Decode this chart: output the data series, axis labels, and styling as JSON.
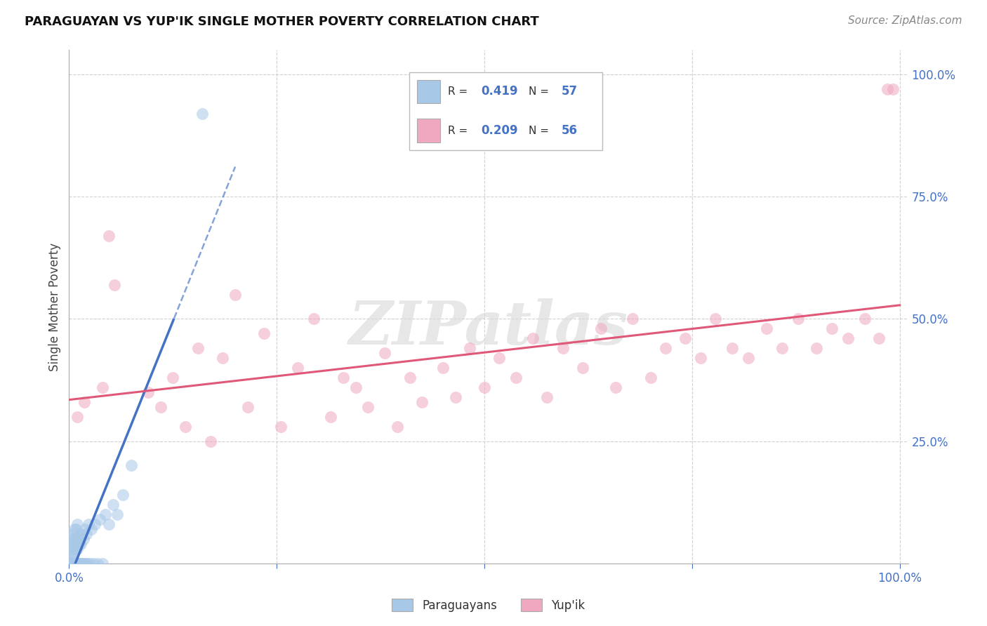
{
  "title": "PARAGUAYAN VS YUP'IK SINGLE MOTHER POVERTY CORRELATION CHART",
  "source": "Source: ZipAtlas.com",
  "ylabel": "Single Mother Poverty",
  "legend_labels": [
    "Paraguayans",
    "Yup'ik"
  ],
  "r_paraguayan": 0.419,
  "n_paraguayan": 57,
  "r_yupik": 0.209,
  "n_yupik": 56,
  "blue_scatter_color": "#a8c8e8",
  "pink_scatter_color": "#f0a8c0",
  "blue_line_color": "#4472c4",
  "pink_line_color": "#e05878",
  "watermark_color": "#d8d8d8",
  "paraguayan_x": [
    0.001,
    0.002,
    0.002,
    0.003,
    0.003,
    0.003,
    0.004,
    0.004,
    0.004,
    0.005,
    0.005,
    0.005,
    0.006,
    0.006,
    0.006,
    0.007,
    0.007,
    0.008,
    0.008,
    0.008,
    0.009,
    0.009,
    0.01,
    0.01,
    0.01,
    0.011,
    0.011,
    0.012,
    0.012,
    0.013,
    0.013,
    0.014,
    0.014,
    0.015,
    0.015,
    0.016,
    0.017,
    0.018,
    0.019,
    0.02,
    0.021,
    0.022,
    0.023,
    0.025,
    0.027,
    0.029,
    0.031,
    0.034,
    0.037,
    0.04,
    0.044,
    0.048,
    0.053,
    0.058,
    0.065,
    0.075,
    0.16
  ],
  "paraguayan_y": [
    0.0,
    0.01,
    0.04,
    0.0,
    0.02,
    0.05,
    0.0,
    0.03,
    0.06,
    0.0,
    0.02,
    0.05,
    0.0,
    0.03,
    0.07,
    0.0,
    0.04,
    0.0,
    0.03,
    0.07,
    0.0,
    0.05,
    0.0,
    0.03,
    0.08,
    0.0,
    0.05,
    0.0,
    0.04,
    0.0,
    0.06,
    0.0,
    0.04,
    0.0,
    0.06,
    0.0,
    0.05,
    0.0,
    0.07,
    0.0,
    0.06,
    0.0,
    0.08,
    0.0,
    0.07,
    0.0,
    0.08,
    0.0,
    0.09,
    0.0,
    0.1,
    0.08,
    0.12,
    0.1,
    0.14,
    0.2,
    0.92
  ],
  "yupik_x": [
    0.01,
    0.018,
    0.04,
    0.048,
    0.055,
    0.095,
    0.11,
    0.125,
    0.14,
    0.155,
    0.17,
    0.185,
    0.2,
    0.215,
    0.235,
    0.255,
    0.275,
    0.295,
    0.315,
    0.33,
    0.345,
    0.36,
    0.38,
    0.395,
    0.41,
    0.425,
    0.45,
    0.465,
    0.482,
    0.5,
    0.518,
    0.538,
    0.558,
    0.575,
    0.595,
    0.618,
    0.64,
    0.658,
    0.678,
    0.7,
    0.718,
    0.742,
    0.76,
    0.778,
    0.798,
    0.818,
    0.84,
    0.858,
    0.878,
    0.9,
    0.918,
    0.938,
    0.958,
    0.975,
    0.985,
    0.992
  ],
  "yupik_y": [
    0.3,
    0.33,
    0.36,
    0.67,
    0.57,
    0.35,
    0.32,
    0.38,
    0.28,
    0.44,
    0.25,
    0.42,
    0.55,
    0.32,
    0.47,
    0.28,
    0.4,
    0.5,
    0.3,
    0.38,
    0.36,
    0.32,
    0.43,
    0.28,
    0.38,
    0.33,
    0.4,
    0.34,
    0.44,
    0.36,
    0.42,
    0.38,
    0.46,
    0.34,
    0.44,
    0.4,
    0.48,
    0.36,
    0.5,
    0.38,
    0.44,
    0.46,
    0.42,
    0.5,
    0.44,
    0.42,
    0.48,
    0.44,
    0.5,
    0.44,
    0.48,
    0.46,
    0.5,
    0.46,
    0.97,
    0.97
  ],
  "xlim": [
    0.0,
    1.01
  ],
  "ylim": [
    0.0,
    1.05
  ],
  "yticks": [
    0.0,
    0.25,
    0.5,
    0.75,
    1.0
  ],
  "xticks": [
    0.0,
    0.25,
    0.5,
    0.75,
    1.0
  ],
  "grid_color": "#cccccc"
}
